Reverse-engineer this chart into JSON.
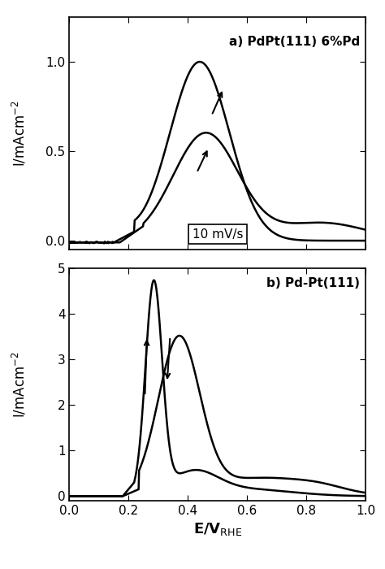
{
  "title_a": "a) PdPt(111) 6%Pd",
  "title_b": "b) Pd-Pt(111)",
  "xlabel": "E/V$_{RHE}$",
  "ylabel": "I/mAcm$^{-2}$",
  "annotation": "10 mV/s",
  "xlim": [
    0.0,
    1.0
  ],
  "ylim_a": [
    -0.05,
    1.25
  ],
  "ylim_b": [
    -0.1,
    5.0
  ],
  "yticks_a": [
    0.0,
    0.5,
    1.0
  ],
  "yticks_b": [
    0,
    1,
    2,
    3,
    4,
    5
  ],
  "xticks": [
    0.0,
    0.2,
    0.4,
    0.6,
    0.8,
    1.0
  ],
  "line_color": "#000000",
  "background_color": "#ffffff"
}
